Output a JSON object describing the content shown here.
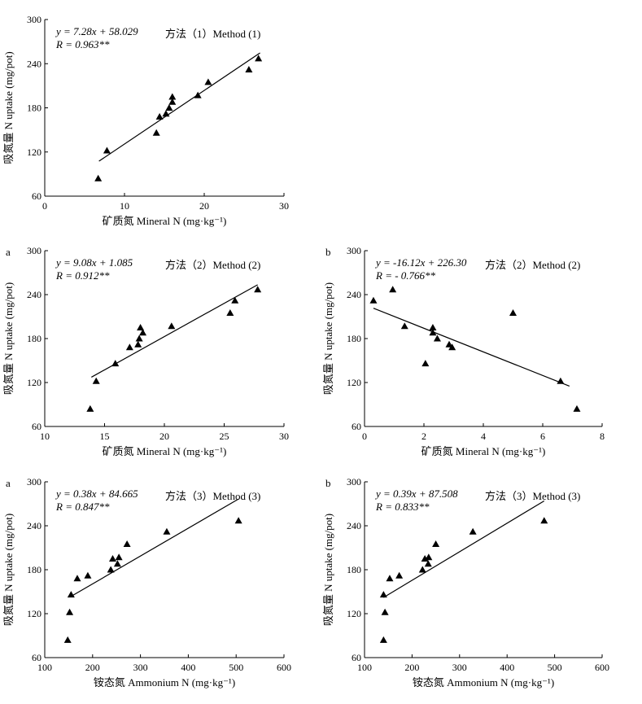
{
  "chart_data": [
    {
      "id": "p1",
      "type": "scatter",
      "panel_label": "",
      "xlabel": "矿质氮 Mineral N (mg·kg⁻¹)",
      "ylabel": "吸氮量 N uptake (mg/pot)",
      "xlim": [
        0,
        30
      ],
      "ylim": [
        60,
        300
      ],
      "xticks": [
        0,
        10,
        20,
        30
      ],
      "yticks": [
        60,
        120,
        180,
        240,
        300
      ],
      "equation": "y = 7.28x + 58.029",
      "r_text": "R = 0.963**",
      "method_label": "方法（1）Method (1)",
      "fit": {
        "slope": 7.28,
        "intercept": 58.029,
        "x_range": [
          6.8,
          27.0
        ]
      },
      "points": [
        {
          "x": 6.7,
          "y": 84
        },
        {
          "x": 7.8,
          "y": 122
        },
        {
          "x": 14.0,
          "y": 146
        },
        {
          "x": 14.4,
          "y": 168
        },
        {
          "x": 15.2,
          "y": 172
        },
        {
          "x": 15.6,
          "y": 180
        },
        {
          "x": 16.0,
          "y": 188
        },
        {
          "x": 16.0,
          "y": 195
        },
        {
          "x": 19.2,
          "y": 197
        },
        {
          "x": 20.5,
          "y": 215
        },
        {
          "x": 25.6,
          "y": 232
        },
        {
          "x": 26.8,
          "y": 247
        }
      ]
    },
    {
      "id": "p2a",
      "type": "scatter",
      "panel_label": "a",
      "xlabel": "矿质氮 Mineral N (mg·kg⁻¹)",
      "ylabel": "吸氮量 N uptake (mg/pot)",
      "xlim": [
        10,
        30
      ],
      "ylim": [
        60,
        300
      ],
      "xticks": [
        10,
        15,
        20,
        25,
        30
      ],
      "yticks": [
        60,
        120,
        180,
        240,
        300
      ],
      "equation": "y = 9.08x + 1.085",
      "r_text": "R = 0.912**",
      "method_label": "方法（2）Method (2)",
      "fit": {
        "slope": 9.08,
        "intercept": 1.085,
        "x_range": [
          13.9,
          27.8
        ]
      },
      "points": [
        {
          "x": 13.8,
          "y": 84
        },
        {
          "x": 14.3,
          "y": 122
        },
        {
          "x": 15.9,
          "y": 146
        },
        {
          "x": 17.1,
          "y": 168
        },
        {
          "x": 17.8,
          "y": 172
        },
        {
          "x": 17.9,
          "y": 180
        },
        {
          "x": 18.2,
          "y": 188
        },
        {
          "x": 18.0,
          "y": 195
        },
        {
          "x": 20.6,
          "y": 197
        },
        {
          "x": 25.5,
          "y": 215
        },
        {
          "x": 25.9,
          "y": 232
        },
        {
          "x": 27.8,
          "y": 247
        }
      ]
    },
    {
      "id": "p2b",
      "type": "scatter",
      "panel_label": "b",
      "xlabel": "矿质氮 Mineral N (mg·kg⁻¹)",
      "ylabel": "吸氮量 N uptake (mg/pot)",
      "xlim": [
        0,
        8
      ],
      "ylim": [
        60,
        300
      ],
      "xticks": [
        0,
        2,
        4,
        6,
        8
      ],
      "yticks": [
        60,
        120,
        180,
        240,
        300
      ],
      "equation": "y = -16.12x + 226.30",
      "r_text": "R = - 0.766**",
      "method_label": "方法（2）Method (2)",
      "fit": {
        "slope": -16.12,
        "intercept": 226.3,
        "x_range": [
          0.3,
          6.9
        ]
      },
      "points": [
        {
          "x": 0.3,
          "y": 232
        },
        {
          "x": 0.95,
          "y": 247
        },
        {
          "x": 1.35,
          "y": 197
        },
        {
          "x": 2.05,
          "y": 146
        },
        {
          "x": 2.3,
          "y": 195
        },
        {
          "x": 2.3,
          "y": 188
        },
        {
          "x": 2.45,
          "y": 180
        },
        {
          "x": 2.85,
          "y": 172
        },
        {
          "x": 2.95,
          "y": 168
        },
        {
          "x": 5.0,
          "y": 215
        },
        {
          "x": 6.6,
          "y": 122
        },
        {
          "x": 7.15,
          "y": 84
        }
      ]
    },
    {
      "id": "p3a",
      "type": "scatter",
      "panel_label": "a",
      "xlabel": "铵态氮 Ammonium N (mg·kg⁻¹)",
      "ylabel": "吸氮量 N uptake (mg/pot)",
      "xlim": [
        100,
        600
      ],
      "ylim": [
        60,
        300
      ],
      "xticks": [
        100,
        200,
        300,
        400,
        500,
        600
      ],
      "yticks": [
        60,
        120,
        180,
        240,
        300
      ],
      "equation": "y = 0.38x + 84.665",
      "r_text": "R = 0.847**",
      "method_label": "方法（3）Method (3)",
      "fit": {
        "slope": 0.38,
        "intercept": 84.665,
        "x_range": [
          155,
          505
        ]
      },
      "points": [
        {
          "x": 148,
          "y": 84
        },
        {
          "x": 152,
          "y": 122
        },
        {
          "x": 155,
          "y": 146
        },
        {
          "x": 168,
          "y": 168
        },
        {
          "x": 190,
          "y": 172
        },
        {
          "x": 238,
          "y": 180
        },
        {
          "x": 242,
          "y": 195
        },
        {
          "x": 252,
          "y": 188
        },
        {
          "x": 255,
          "y": 197
        },
        {
          "x": 272,
          "y": 215
        },
        {
          "x": 355,
          "y": 232
        },
        {
          "x": 505,
          "y": 247
        }
      ]
    },
    {
      "id": "p3b",
      "type": "scatter",
      "panel_label": "b",
      "xlabel": "铵态氮 Ammonium N (mg·kg⁻¹)",
      "ylabel": "吸氮量 N uptake (mg/pot)",
      "xlim": [
        100,
        600
      ],
      "ylim": [
        60,
        300
      ],
      "xticks": [
        100,
        200,
        300,
        400,
        500,
        600
      ],
      "yticks": [
        60,
        120,
        180,
        240,
        300
      ],
      "equation": "y = 0.39x + 87.508",
      "r_text": "R = 0.833**",
      "method_label": "方法（3）Method (3)",
      "fit": {
        "slope": 0.39,
        "intercept": 87.508,
        "x_range": [
          140,
          478
        ]
      },
      "points": [
        {
          "x": 140,
          "y": 84
        },
        {
          "x": 143,
          "y": 122
        },
        {
          "x": 140,
          "y": 146
        },
        {
          "x": 153,
          "y": 168
        },
        {
          "x": 173,
          "y": 172
        },
        {
          "x": 222,
          "y": 180
        },
        {
          "x": 227,
          "y": 195
        },
        {
          "x": 234,
          "y": 188
        },
        {
          "x": 235,
          "y": 197
        },
        {
          "x": 250,
          "y": 215
        },
        {
          "x": 328,
          "y": 232
        },
        {
          "x": 478,
          "y": 247
        }
      ]
    }
  ]
}
